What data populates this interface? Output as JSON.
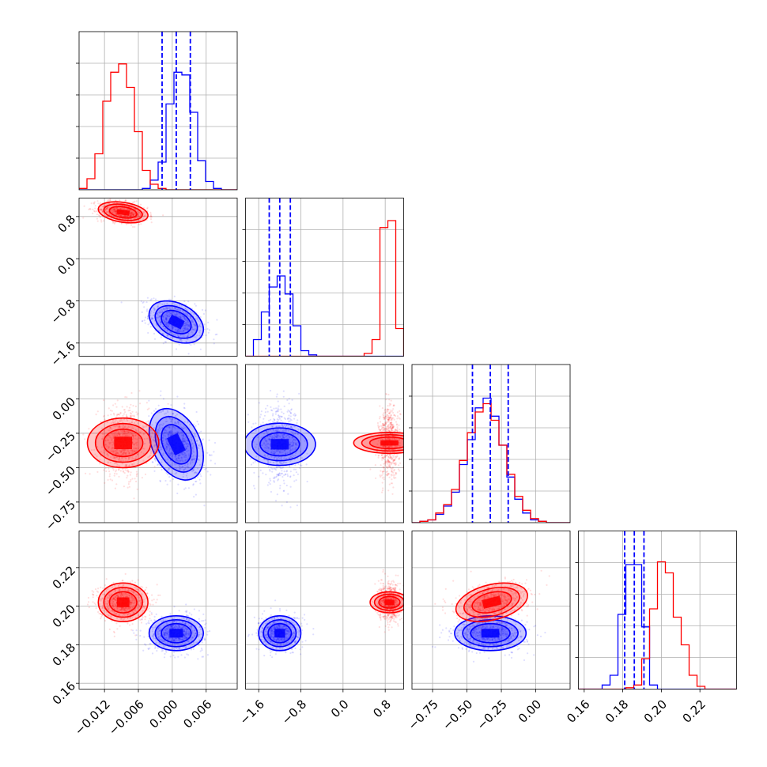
{
  "chart_data": {
    "type": "scatter",
    "title": "",
    "grid": true,
    "legend": "none",
    "colors": {
      "series_a": "#0000ff",
      "series_b": "#ff0000"
    },
    "parameters": [
      {
        "ticks": [
          -0.012,
          -0.006,
          0.0,
          0.006
        ],
        "tick_labels": [
          "−0.012",
          "−0.006",
          "0.000",
          "0.006"
        ],
        "range": [
          -0.0165,
          0.0115
        ]
      },
      {
        "ticks": [
          -1.6,
          -0.8,
          0.0,
          0.8
        ],
        "tick_labels": [
          "−1.6",
          "−0.8",
          "0.0",
          "0.8"
        ],
        "range": [
          -1.85,
          1.15
        ]
      },
      {
        "ticks": [
          -0.75,
          -0.5,
          -0.25,
          0.0
        ],
        "tick_labels": [
          "−0.75",
          "−0.50",
          "−0.25",
          "0.00"
        ],
        "range": [
          -0.9,
          0.25
        ]
      },
      {
        "ticks": [
          0.16,
          0.18,
          0.2,
          0.22
        ],
        "tick_labels": [
          "0.16",
          "0.18",
          "0.20",
          "0.22"
        ],
        "range": [
          0.157,
          0.239
        ]
      }
    ],
    "series": [
      {
        "color": "#0000ff",
        "mean": [
          0.0007,
          -1.2,
          -0.33,
          0.186
        ],
        "std": [
          0.0024,
          0.2,
          0.13,
          0.0045
        ],
        "correlations": [
          [
            0,
            1,
            -0.35
          ],
          [
            0,
            2,
            -0.35
          ],
          [
            2,
            3,
            0.0
          ]
        ],
        "quantile_lines": [
          [
            -0.0018,
            0.0007,
            0.0032
          ],
          [
            -1.4,
            -1.2,
            -1.0
          ],
          [
            -0.46,
            -0.33,
            -0.2
          ],
          [
            0.181,
            0.186,
            0.191
          ]
        ]
      },
      {
        "color": "#ff0000",
        "mean": [
          -0.0087,
          0.88,
          -0.32,
          0.202
        ],
        "std": [
          0.0022,
          0.1,
          0.13,
          0.005
        ],
        "correlations": [
          [
            0,
            1,
            -0.3
          ],
          [
            2,
            3,
            0.35
          ]
        ]
      }
    ],
    "histograms": [
      {
        "bin_edges": [
          -0.0165,
          -0.0151,
          -0.0137,
          -0.0123,
          -0.0109,
          -0.0095,
          -0.0081,
          -0.0067,
          -0.0053,
          -0.0039,
          -0.0025,
          -0.0011,
          0.0003,
          0.0017,
          0.0031,
          0.0045,
          0.0059,
          0.0073,
          0.0087,
          0.0101,
          0.0115
        ],
        "counts": {
          "blue": [
            0,
            0,
            0,
            0,
            0,
            0,
            0,
            0,
            0.01,
            0.07,
            0.2,
            0.62,
            0.85,
            0.83,
            0.56,
            0.21,
            0.06,
            0.01,
            0,
            0
          ],
          "red": [
            0.01,
            0.08,
            0.26,
            0.64,
            0.85,
            0.91,
            0.74,
            0.42,
            0.14,
            0.04,
            0.01,
            0,
            0,
            0,
            0,
            0,
            0,
            0,
            0,
            0
          ]
        }
      },
      {
        "bin_edges": [
          -1.85,
          -1.7,
          -1.55,
          -1.4,
          -1.25,
          -1.1,
          -0.95,
          -0.8,
          -0.65,
          -0.5,
          -0.35,
          -0.2,
          -0.05,
          0.1,
          0.25,
          0.4,
          0.55,
          0.7,
          0.85,
          1.0,
          1.15
        ],
        "counts": {
          "blue": [
            0.0,
            0.12,
            0.32,
            0.5,
            0.58,
            0.45,
            0.22,
            0.04,
            0.01,
            0,
            0,
            0,
            0,
            0,
            0,
            0,
            0,
            0,
            0,
            0
          ],
          "red": [
            0,
            0,
            0,
            0,
            0,
            0,
            0,
            0,
            0,
            0,
            0,
            0,
            0,
            0,
            0,
            0.02,
            0.12,
            0.93,
            0.98,
            0.2
          ]
        }
      },
      {
        "bin_edges": [
          -0.9,
          -0.8425,
          -0.785,
          -0.7275,
          -0.67,
          -0.6125,
          -0.555,
          -0.4975,
          -0.44,
          -0.3825,
          -0.325,
          -0.2675,
          -0.21,
          -0.1525,
          -0.095,
          -0.0375,
          0.02,
          0.0775,
          0.135,
          0.1925,
          0.25
        ],
        "counts": {
          "blue": [
            0,
            0.01,
            0.02,
            0.06,
            0.12,
            0.22,
            0.42,
            0.6,
            0.83,
            0.9,
            0.77,
            0.56,
            0.33,
            0.17,
            0.07,
            0.02,
            0.01,
            0,
            0,
            0
          ],
          "red": [
            0,
            0.01,
            0.02,
            0.07,
            0.13,
            0.24,
            0.45,
            0.65,
            0.8,
            0.86,
            0.74,
            0.56,
            0.35,
            0.19,
            0.09,
            0.03,
            0.01,
            0,
            0,
            0
          ]
        }
      },
      {
        "bin_edges": [
          0.157,
          0.1611,
          0.1652,
          0.1693,
          0.1734,
          0.1775,
          0.1816,
          0.1857,
          0.1898,
          0.1939,
          0.198,
          0.2021,
          0.2062,
          0.2103,
          0.2144,
          0.2185,
          0.2226,
          0.2267,
          0.2308,
          0.2349,
          0.239
        ],
        "counts": {
          "blue": [
            0,
            0,
            0,
            0.03,
            0.1,
            0.54,
            0.9,
            0.9,
            0.45,
            0.03,
            0,
            0,
            0,
            0,
            0,
            0,
            0,
            0,
            0,
            0
          ],
          "red": [
            0,
            0,
            0,
            0,
            0,
            0,
            0.01,
            0.03,
            0.22,
            0.58,
            0.92,
            0.84,
            0.52,
            0.32,
            0.1,
            0.02,
            0,
            0,
            0,
            0
          ]
        }
      }
    ]
  }
}
